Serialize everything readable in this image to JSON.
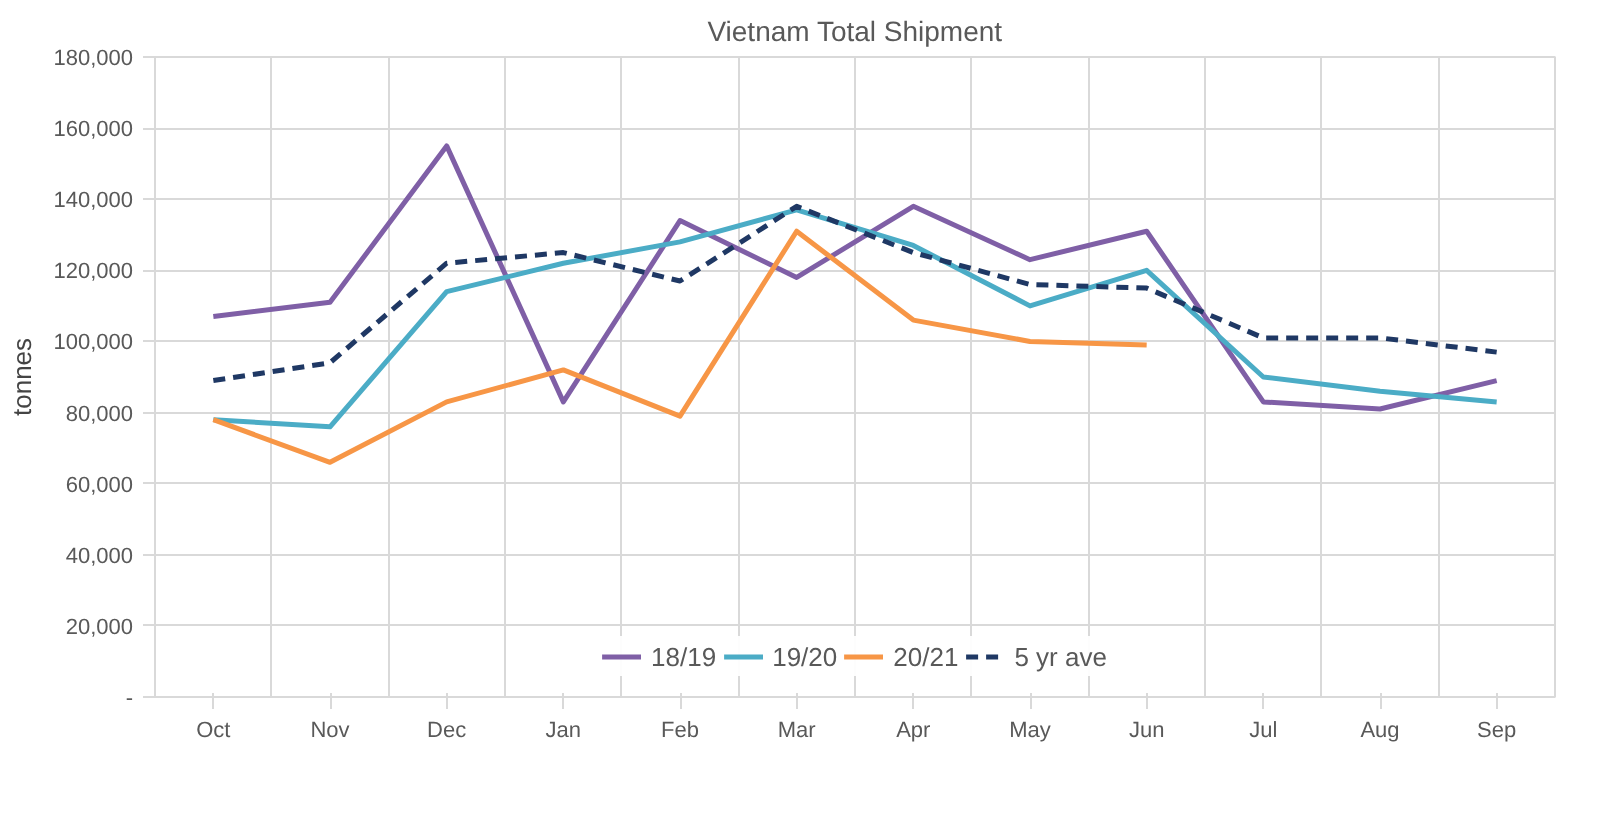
{
  "chart_data": {
    "type": "line",
    "title": "Vietnam Total Shipment",
    "ylabel": "tonnes",
    "categories": [
      "Oct",
      "Nov",
      "Dec",
      "Jan",
      "Feb",
      "Mar",
      "Apr",
      "May",
      "Jun",
      "Jul",
      "Aug",
      "Sep"
    ],
    "ylim": [
      0,
      180000
    ],
    "yticks": [
      {
        "value": 0,
        "label": "-"
      },
      {
        "value": 20000,
        "label": "20,000"
      },
      {
        "value": 40000,
        "label": "40,000"
      },
      {
        "value": 60000,
        "label": "60,000"
      },
      {
        "value": 80000,
        "label": "80,000"
      },
      {
        "value": 100000,
        "label": "100,000"
      },
      {
        "value": 120000,
        "label": "120,000"
      },
      {
        "value": 140000,
        "label": "140,000"
      },
      {
        "value": 160000,
        "label": "160,000"
      },
      {
        "value": 180000,
        "label": "180,000"
      }
    ],
    "grid": true,
    "legend": "bottom",
    "series": [
      {
        "name": "18/19",
        "color": "#7f5fa6",
        "line_style": "solid",
        "values": [
          107000,
          111000,
          155000,
          83000,
          134000,
          118000,
          138000,
          123000,
          131000,
          83000,
          81000,
          89000
        ]
      },
      {
        "name": "19/20",
        "color": "#4bacc6",
        "line_style": "solid",
        "values": [
          78000,
          76000,
          114000,
          122000,
          128000,
          137000,
          127000,
          110000,
          120000,
          90000,
          86000,
          83000
        ]
      },
      {
        "name": "20/21",
        "color": "#f79646",
        "line_style": "solid",
        "values": [
          78000,
          66000,
          83000,
          92000,
          79000,
          131000,
          106000,
          100000,
          99000,
          null,
          null,
          null
        ]
      },
      {
        "name": "5 yr ave",
        "color": "#1f3864",
        "line_style": "dashed",
        "values": [
          89000,
          94000,
          122000,
          125000,
          117000,
          138000,
          125000,
          116000,
          115000,
          101000,
          101000,
          97000
        ]
      }
    ]
  }
}
